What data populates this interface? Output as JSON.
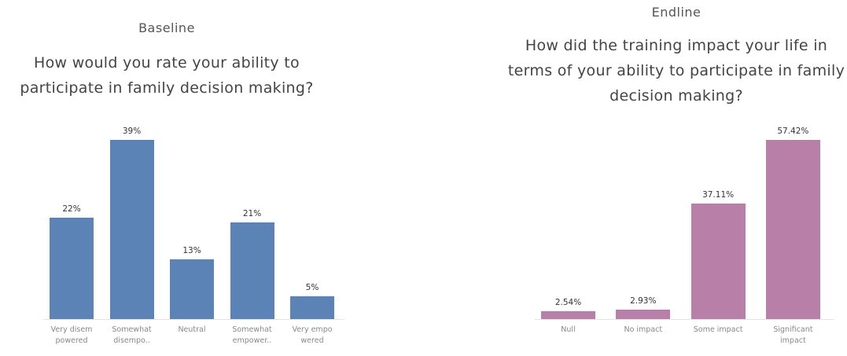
{
  "chart_data": [
    {
      "type": "bar",
      "title": "Baseline",
      "subtitle": "How would you rate your ability to participate in family decision making?",
      "categories": [
        "Very disem powered",
        "Somewhat disempo..",
        "Neutral",
        "Somewhat empower..",
        "Very empo wered"
      ],
      "values": [
        22,
        39,
        13,
        21,
        5
      ],
      "value_labels": [
        "22%",
        "39%",
        "13%",
        "21%",
        "5%"
      ],
      "color": "#5b83b5"
    },
    {
      "type": "bar",
      "title": "Endline",
      "subtitle": "How did the training impact your life in terms of your ability to participate in family decision making?",
      "categories": [
        "Null",
        "No impact",
        "Some impact",
        "Significant impact"
      ],
      "values": [
        2.54,
        2.93,
        37.11,
        57.42
      ],
      "value_labels": [
        "2.54%",
        "2.93%",
        "37.11%",
        "57.42%"
      ],
      "color": "#b87fa8"
    }
  ]
}
